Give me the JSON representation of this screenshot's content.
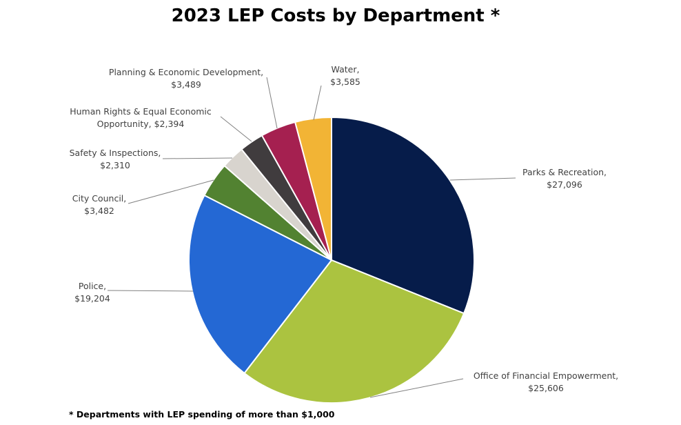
{
  "chart_data": {
    "type": "pie",
    "title": "2023 LEP Costs by Department *",
    "footnote": "* Departments with LEP spending of more than $1,000",
    "slices": [
      {
        "name": "Parks & Recreation",
        "value": 27096,
        "value_label": "$27,096",
        "color": "#061c4a"
      },
      {
        "name": "Office of Financial Empowerment",
        "value": 25606,
        "value_label": "$25,606",
        "color": "#abc340"
      },
      {
        "name": "Police",
        "value": 19204,
        "value_label": "$19,204",
        "color": "#2468d4"
      },
      {
        "name": "City Council",
        "value": 3482,
        "value_label": "$3,482",
        "color": "#528231"
      },
      {
        "name": "Safety & Inspections",
        "value": 2310,
        "value_label": "$2,310",
        "color": "#d8d4ce"
      },
      {
        "name": "Human Rights & Equal Economic Opportunity",
        "value": 2394,
        "value_label": "$2,394",
        "color": "#403c3e"
      },
      {
        "name": "Planning & Economic Development",
        "value": 3489,
        "value_label": "$3,489",
        "color": "#a52050"
      },
      {
        "name": "Water",
        "value": 3585,
        "value_label": "$3,585",
        "color": "#f2b435"
      }
    ],
    "labels": [
      {
        "line1": "Parks & Recreation,",
        "line2": "$27,096"
      },
      {
        "line1": "Office of Financial Empowerment,",
        "line2": "$25,606"
      },
      {
        "line1": "Police,",
        "line2": "$19,204"
      },
      {
        "line1": "City Council,",
        "line2": "$3,482"
      },
      {
        "line1": "Safety & Inspections,",
        "line2": "$2,310"
      },
      {
        "line1": "Human Rights & Equal Economic",
        "line2": "Opportunity, $2,394"
      },
      {
        "line1": "Planning & Economic Development,",
        "line2": "$3,489"
      },
      {
        "line1": "Water,",
        "line2": "$3,585"
      }
    ]
  }
}
